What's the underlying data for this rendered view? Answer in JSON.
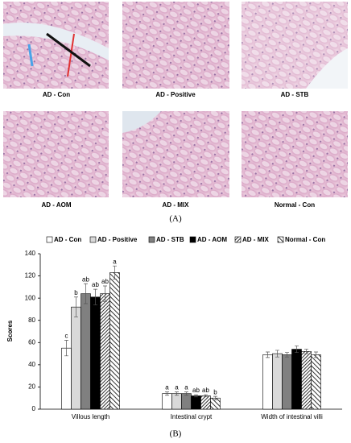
{
  "panel_a": {
    "label": "(A)",
    "images": [
      "AD - Con",
      "AD - Positive",
      "AD - STB",
      "AD - AOM",
      "AD - MIX",
      "Normal - Con"
    ]
  },
  "chart_data": {
    "type": "bar",
    "panel_label": "(B)",
    "y_label": "Scores",
    "categories": [
      "Villous length",
      "Intestinal crypt",
      "Width of intestinal villi"
    ],
    "ylim": [
      0,
      140
    ],
    "yticks": [
      0,
      20,
      40,
      60,
      80,
      100,
      120,
      140
    ],
    "series": [
      {
        "name": "AD - Con",
        "color": "#ffffff",
        "pattern": "solid",
        "values": [
          55,
          14,
          49
        ],
        "errors": [
          7,
          1.5,
          2.5
        ],
        "letters": [
          "c",
          "a",
          null
        ]
      },
      {
        "name": "AD - Positive",
        "color": "#d9d9d9",
        "pattern": "solid",
        "values": [
          92,
          14,
          50
        ],
        "errors": [
          9,
          1.5,
          3
        ],
        "letters": [
          "b",
          "a",
          null
        ]
      },
      {
        "name": "AD - STB",
        "color": "#808080",
        "pattern": "solid",
        "values": [
          104,
          14,
          49
        ],
        "errors": [
          9,
          1.5,
          2
        ],
        "letters": [
          "ab",
          "a",
          null
        ]
      },
      {
        "name": "AD - AOM",
        "color": "#000000",
        "pattern": "solid",
        "values": [
          101,
          12,
          54
        ],
        "errors": [
          7,
          1,
          3
        ],
        "letters": [
          "ab",
          "ab",
          null
        ]
      },
      {
        "name": "AD - MIX",
        "color": "#000000",
        "pattern": "hatch-dense",
        "values": [
          104,
          12,
          52
        ],
        "errors": [
          7,
          1,
          2
        ],
        "letters": [
          "ab",
          "ab",
          null
        ]
      },
      {
        "name": "Normal - Con",
        "color": "#000000",
        "pattern": "hatch-wide",
        "values": [
          123,
          10,
          49
        ],
        "errors": [
          6,
          1.5,
          2.5
        ],
        "letters": [
          "a",
          "b",
          null
        ]
      }
    ]
  }
}
